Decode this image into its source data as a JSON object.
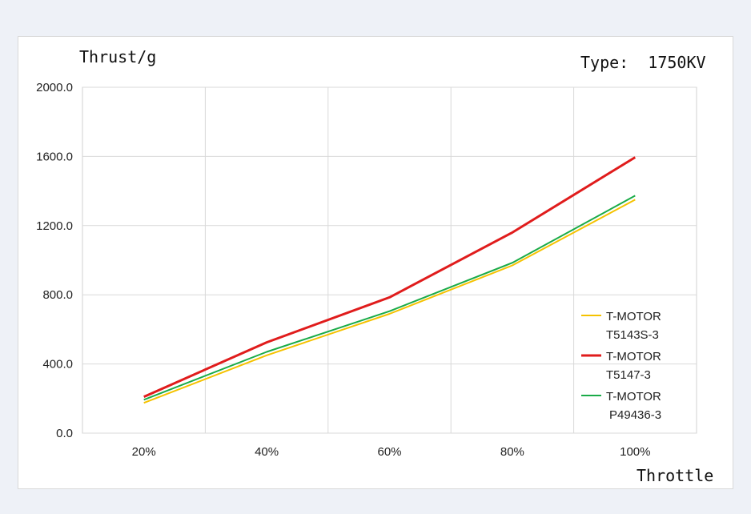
{
  "chart_data": {
    "type": "line",
    "title": "Type:  1750KV",
    "ylabel": "Thrust/g",
    "xlabel": "Throttle",
    "categories": [
      "20%",
      "40%",
      "60%",
      "80%",
      "100%"
    ],
    "ylim": [
      0,
      2000
    ],
    "yticks": [
      "0.0",
      "400.0",
      "800.0",
      "1200.0",
      "1600.0",
      "2000.0"
    ],
    "grid": true,
    "legend_position": "right",
    "series": [
      {
        "name_line1": "T-MOTOR",
        "name_line2": "T5143S-3",
        "color": "#f5c200",
        "values": [
          175,
          450,
          690,
          970,
          1350
        ]
      },
      {
        "name_line1": "T-MOTOR",
        "name_line2": "T5147-3",
        "color": "#e01c1c",
        "values": [
          210,
          525,
          785,
          1160,
          1595
        ]
      },
      {
        "name_line1": "T-MOTOR",
        "name_line2": "P49436-3",
        "color": "#1aab48",
        "values": [
          193,
          470,
          705,
          985,
          1373
        ]
      }
    ]
  }
}
